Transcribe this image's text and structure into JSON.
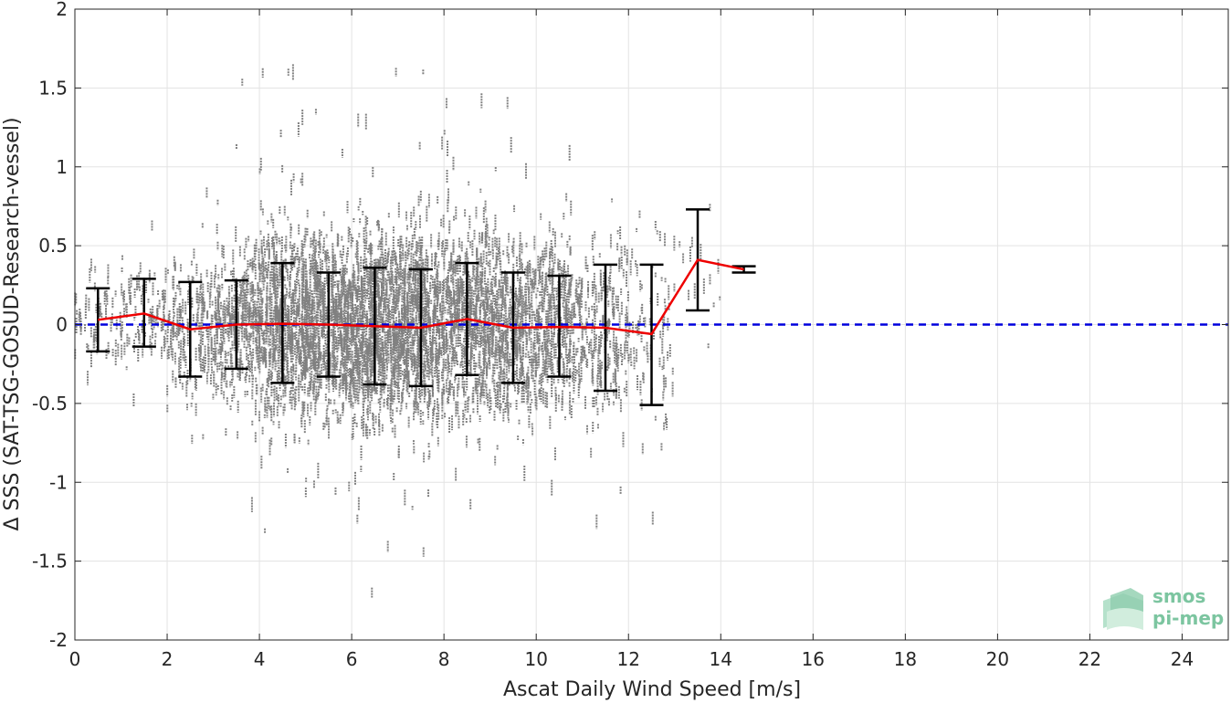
{
  "chart_data": {
    "type": "scatter",
    "title": "",
    "xlabel": "Ascat Daily Wind Speed [m/s]",
    "ylabel": "Δ SSS (SAT-TSG-GOSUD-Research-vessel)",
    "xlim": [
      0,
      25
    ],
    "ylim": [
      -2,
      2
    ],
    "x_ticks": [
      0,
      2,
      4,
      6,
      8,
      10,
      12,
      14,
      16,
      18,
      20,
      22,
      24
    ],
    "y_ticks": [
      -2,
      -1.5,
      -1,
      -0.5,
      0,
      0.5,
      1,
      1.5,
      2
    ],
    "x_tick_labels": [
      "0",
      "2",
      "4",
      "6",
      "8",
      "10",
      "12",
      "14",
      "16",
      "18",
      "20",
      "22",
      "24"
    ],
    "y_tick_labels": [
      "-2",
      "-1.5",
      "-1",
      "-0.5",
      "0",
      "0.5",
      "1",
      "1.5",
      "2"
    ],
    "grid": true,
    "reference_line": {
      "y": 0,
      "style": "dashed",
      "color": "#0000dd"
    },
    "series": [
      {
        "type": "errorbar_line",
        "color": "#ee0000",
        "x": [
          0.5,
          1.5,
          2.5,
          3.5,
          4.5,
          5.5,
          6.5,
          7.5,
          8.5,
          9.5,
          10.5,
          11.5,
          12.5,
          13.5,
          14.5
        ],
        "mean": [
          0.03,
          0.07,
          -0.03,
          0.0,
          0.005,
          0.0,
          -0.01,
          -0.02,
          0.035,
          -0.02,
          -0.015,
          -0.02,
          -0.06,
          0.41,
          0.35
        ],
        "lower": [
          -0.17,
          -0.14,
          -0.33,
          -0.28,
          -0.37,
          -0.33,
          -0.38,
          -0.39,
          -0.32,
          -0.37,
          -0.33,
          -0.42,
          -0.51,
          0.09,
          0.33
        ],
        "upper": [
          0.23,
          0.29,
          0.27,
          0.28,
          0.39,
          0.33,
          0.36,
          0.35,
          0.39,
          0.33,
          0.31,
          0.38,
          0.38,
          0.73,
          0.37
        ]
      }
    ],
    "scatter": {
      "color": "#808080",
      "density": [
        {
          "x": [
            0.0,
            1.0
          ],
          "count": 60,
          "center": 0.03,
          "spread": 0.16
        },
        {
          "x": [
            1.0,
            2.0
          ],
          "count": 90,
          "center": 0.07,
          "spread": 0.17
        },
        {
          "x": [
            2.0,
            3.0
          ],
          "count": 160,
          "center": -0.03,
          "spread": 0.24
        },
        {
          "x": [
            3.0,
            4.0
          ],
          "count": 330,
          "center": 0.0,
          "spread": 0.24
        },
        {
          "x": [
            4.0,
            5.0
          ],
          "count": 560,
          "center": 0.0,
          "spread": 0.31
        },
        {
          "x": [
            5.0,
            6.0
          ],
          "count": 620,
          "center": 0.0,
          "spread": 0.27
        },
        {
          "x": [
            6.0,
            7.0
          ],
          "count": 680,
          "center": -0.01,
          "spread": 0.3
        },
        {
          "x": [
            7.0,
            8.0
          ],
          "count": 620,
          "center": -0.02,
          "spread": 0.3
        },
        {
          "x": [
            8.0,
            9.0
          ],
          "count": 520,
          "center": 0.03,
          "spread": 0.29
        },
        {
          "x": [
            9.0,
            10.0
          ],
          "count": 430,
          "center": -0.02,
          "spread": 0.28
        },
        {
          "x": [
            10.0,
            11.0
          ],
          "count": 330,
          "center": -0.01,
          "spread": 0.26
        },
        {
          "x": [
            11.0,
            12.0
          ],
          "count": 190,
          "center": -0.02,
          "spread": 0.3
        },
        {
          "x": [
            12.0,
            13.0
          ],
          "count": 80,
          "center": -0.06,
          "spread": 0.3
        },
        {
          "x": [
            13.0,
            14.0
          ],
          "count": 14,
          "center": 0.35,
          "spread": 0.22
        }
      ]
    }
  },
  "logo": {
    "line1": "smos",
    "line2": "pi-mep",
    "color": "#7cc5a0"
  }
}
